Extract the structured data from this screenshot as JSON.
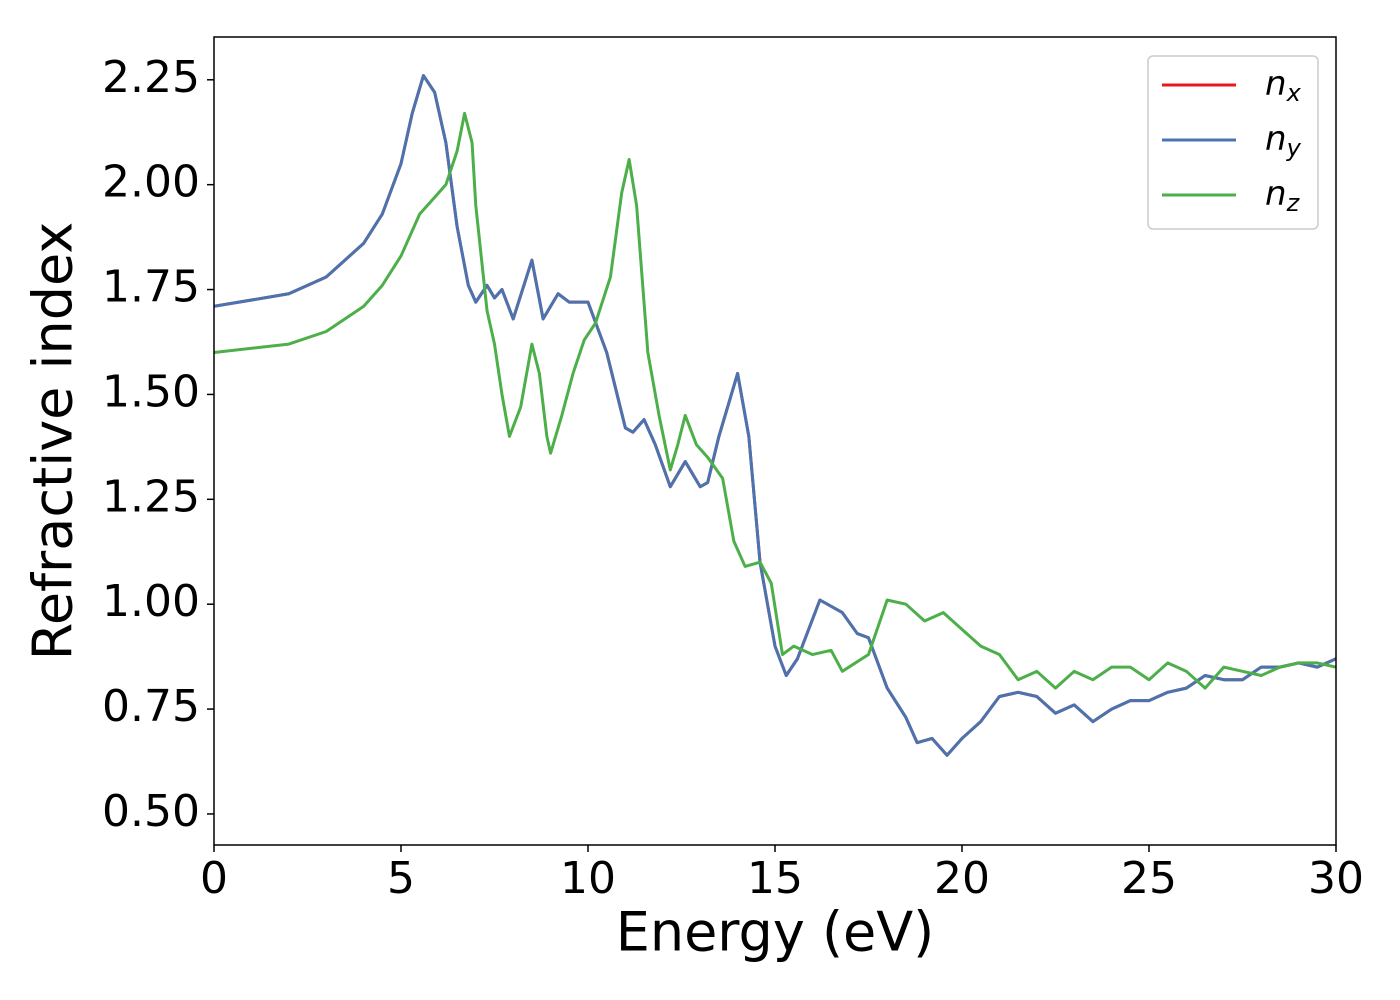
{
  "chart_data": {
    "type": "line",
    "x_label": "Energy (eV)",
    "y_label": "Refractive index",
    "xlim": [
      0,
      30
    ],
    "ylim": [
      0.426,
      2.352
    ],
    "xticks": [
      0,
      5,
      10,
      15,
      20,
      25,
      30
    ],
    "yticks": [
      {
        "value": 0.5,
        "label": "0.50"
      },
      0.75,
      {
        "value": 1,
        "label": "1.00"
      },
      1.25,
      {
        "value": 1.5,
        "label": "1.50"
      },
      1.75,
      {
        "value": 2,
        "label": "2.00"
      },
      2.25
    ],
    "legend": "upper right",
    "series": [
      {
        "name": "nx",
        "color": "#e41a1c",
        "x": [
          0,
          2,
          3,
          4,
          4.5,
          5,
          5.3,
          5.6,
          5.9,
          6.2,
          6.5,
          6.8,
          7.0,
          7.3,
          7.5,
          7.7,
          8.0,
          8.5,
          8.8,
          9.2,
          9.5,
          10.0,
          10.5,
          11.0,
          11.2,
          11.5,
          11.8,
          12.2,
          12.6,
          13.0,
          13.2,
          13.5,
          14.0,
          14.3,
          14.6,
          15.0,
          15.3,
          15.6,
          16.2,
          16.8,
          17.2,
          17.5,
          18.0,
          18.5,
          18.8,
          19.2,
          19.6,
          20.0,
          20.5,
          21.0,
          21.5,
          22.0,
          22.5,
          23.0,
          23.5,
          24.0,
          24.5,
          25.0,
          25.5,
          26.0,
          26.5,
          27.0,
          27.5,
          28.0,
          28.5,
          29.0,
          29.5,
          30.0
        ],
        "values": [
          1.71,
          1.74,
          1.78,
          1.86,
          1.93,
          2.05,
          2.17,
          2.26,
          2.22,
          2.1,
          1.9,
          1.76,
          1.72,
          1.76,
          1.73,
          1.75,
          1.68,
          1.82,
          1.68,
          1.74,
          1.72,
          1.72,
          1.6,
          1.42,
          1.41,
          1.44,
          1.38,
          1.28,
          1.34,
          1.28,
          1.29,
          1.4,
          1.55,
          1.4,
          1.1,
          0.9,
          0.83,
          0.87,
          1.01,
          0.98,
          0.93,
          0.92,
          0.8,
          0.73,
          0.67,
          0.68,
          0.64,
          0.68,
          0.72,
          0.78,
          0.79,
          0.78,
          0.74,
          0.76,
          0.72,
          0.75,
          0.77,
          0.77,
          0.79,
          0.8,
          0.83,
          0.82,
          0.82,
          0.85,
          0.85,
          0.86,
          0.85,
          0.87
        ]
      },
      {
        "name": "ny",
        "color": "#4a74b0",
        "x": [
          0,
          2,
          3,
          4,
          4.5,
          5,
          5.3,
          5.6,
          5.9,
          6.2,
          6.5,
          6.8,
          7.0,
          7.3,
          7.5,
          7.7,
          8.0,
          8.5,
          8.8,
          9.2,
          9.5,
          10.0,
          10.5,
          11.0,
          11.2,
          11.5,
          11.8,
          12.2,
          12.6,
          13.0,
          13.2,
          13.5,
          14.0,
          14.3,
          14.6,
          15.0,
          15.3,
          15.6,
          16.2,
          16.8,
          17.2,
          17.5,
          18.0,
          18.5,
          18.8,
          19.2,
          19.6,
          20.0,
          20.5,
          21.0,
          21.5,
          22.0,
          22.5,
          23.0,
          23.5,
          24.0,
          24.5,
          25.0,
          25.5,
          26.0,
          26.5,
          27.0,
          27.5,
          28.0,
          28.5,
          29.0,
          29.5,
          30.0
        ],
        "values": [
          1.71,
          1.74,
          1.78,
          1.86,
          1.93,
          2.05,
          2.17,
          2.26,
          2.22,
          2.1,
          1.9,
          1.76,
          1.72,
          1.76,
          1.73,
          1.75,
          1.68,
          1.82,
          1.68,
          1.74,
          1.72,
          1.72,
          1.6,
          1.42,
          1.41,
          1.44,
          1.38,
          1.28,
          1.34,
          1.28,
          1.29,
          1.4,
          1.55,
          1.4,
          1.1,
          0.9,
          0.83,
          0.87,
          1.01,
          0.98,
          0.93,
          0.92,
          0.8,
          0.73,
          0.67,
          0.68,
          0.64,
          0.68,
          0.72,
          0.78,
          0.79,
          0.78,
          0.74,
          0.76,
          0.72,
          0.75,
          0.77,
          0.77,
          0.79,
          0.8,
          0.83,
          0.82,
          0.82,
          0.85,
          0.85,
          0.86,
          0.85,
          0.87
        ]
      },
      {
        "name": "nz",
        "color": "#4daf4a",
        "x": [
          0,
          2,
          3,
          4,
          4.5,
          5,
          5.5,
          5.8,
          6.2,
          6.5,
          6.7,
          6.9,
          7.0,
          7.3,
          7.5,
          7.7,
          7.9,
          8.2,
          8.5,
          8.7,
          8.9,
          9.0,
          9.3,
          9.6,
          9.9,
          10.2,
          10.6,
          10.9,
          11.1,
          11.3,
          11.6,
          11.9,
          12.2,
          12.4,
          12.6,
          12.9,
          13.2,
          13.6,
          13.9,
          14.2,
          14.6,
          14.9,
          15.2,
          15.5,
          16.0,
          16.5,
          16.8,
          17.5,
          18.0,
          18.5,
          19.0,
          19.5,
          20.0,
          20.5,
          21.0,
          21.5,
          22.0,
          22.5,
          23.0,
          23.5,
          24.0,
          24.5,
          25.0,
          25.5,
          26.0,
          26.5,
          27.0,
          27.5,
          28.0,
          28.5,
          29.0,
          29.5,
          30.0
        ],
        "values": [
          1.6,
          1.62,
          1.65,
          1.71,
          1.76,
          1.83,
          1.93,
          1.96,
          2.0,
          2.08,
          2.17,
          2.1,
          1.95,
          1.7,
          1.62,
          1.5,
          1.4,
          1.47,
          1.62,
          1.55,
          1.4,
          1.36,
          1.45,
          1.55,
          1.63,
          1.67,
          1.78,
          1.98,
          2.06,
          1.95,
          1.6,
          1.45,
          1.32,
          1.38,
          1.45,
          1.38,
          1.35,
          1.3,
          1.15,
          1.09,
          1.1,
          1.05,
          0.88,
          0.9,
          0.88,
          0.89,
          0.84,
          0.88,
          1.01,
          1.0,
          0.96,
          0.98,
          0.94,
          0.9,
          0.88,
          0.82,
          0.84,
          0.8,
          0.84,
          0.82,
          0.85,
          0.85,
          0.82,
          0.86,
          0.84,
          0.8,
          0.85,
          0.84,
          0.83,
          0.85,
          0.86,
          0.86,
          0.85
        ]
      }
    ]
  }
}
